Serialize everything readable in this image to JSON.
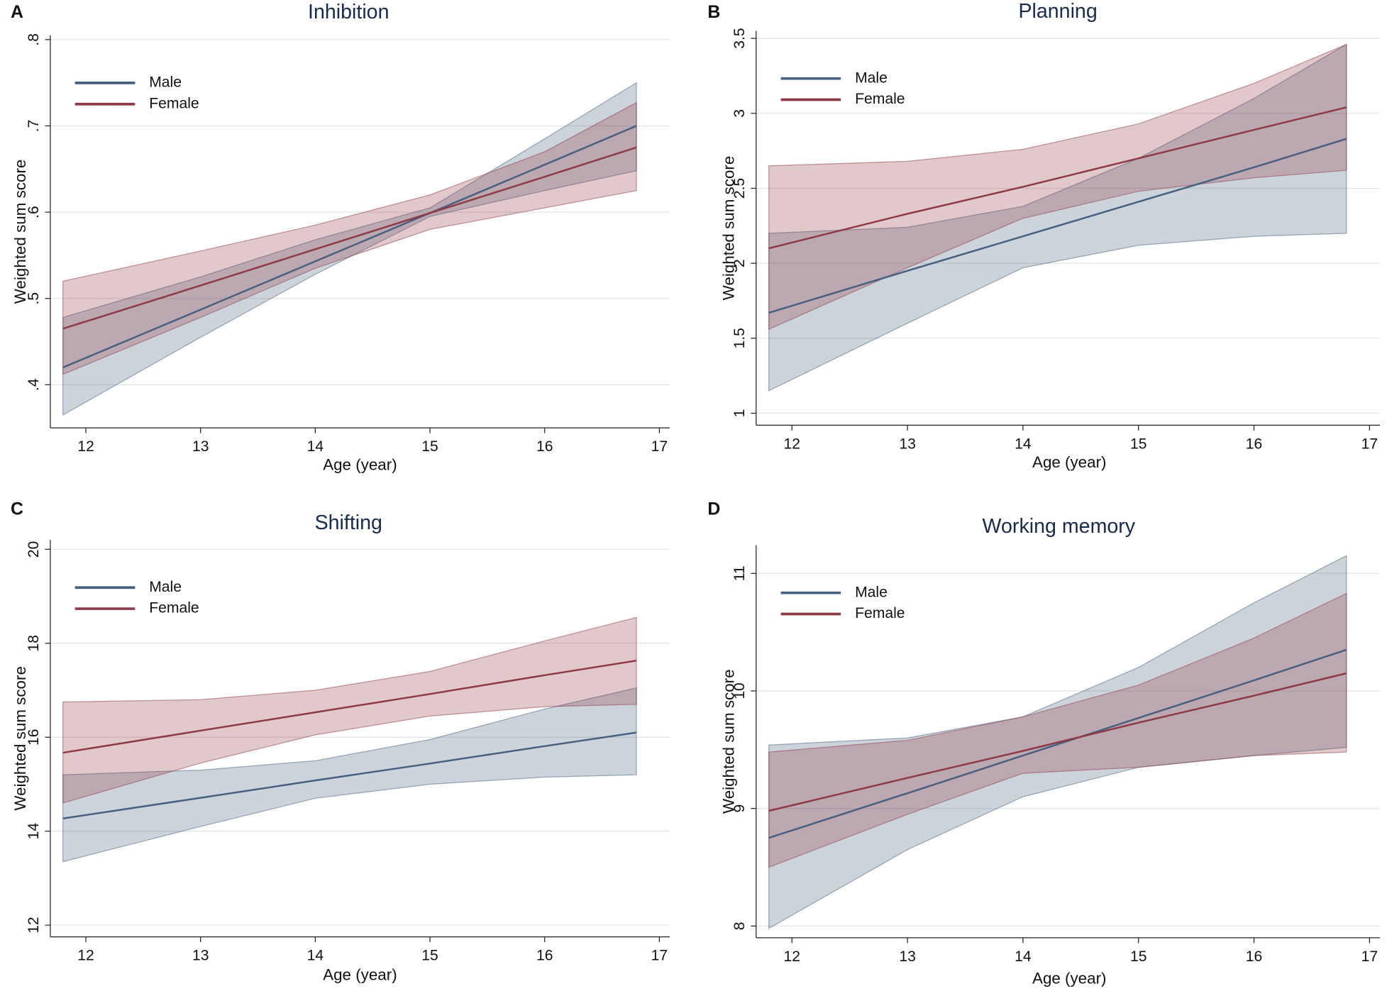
{
  "chart_data": [
    {
      "type": "line",
      "panel": "A",
      "title": "Inhibition",
      "xlabel": "Age (year)",
      "ylabel": "Weighted sum score",
      "x": [
        11.8,
        13,
        14,
        15,
        16,
        16.8
      ],
      "series": [
        {
          "name": "Male",
          "color": "#48607f",
          "values": [
            0.42,
            0.487,
            0.543,
            0.599,
            0.655,
            0.7
          ],
          "lower": [
            0.365,
            0.455,
            0.528,
            0.595,
            0.625,
            0.648
          ],
          "upper": [
            0.478,
            0.525,
            0.568,
            0.605,
            0.685,
            0.75
          ]
        },
        {
          "name": "Female",
          "color": "#8e3a46",
          "values": [
            0.465,
            0.515,
            0.557,
            0.599,
            0.641,
            0.675
          ],
          "lower": [
            0.412,
            0.478,
            0.535,
            0.58,
            0.605,
            0.625
          ],
          "upper": [
            0.52,
            0.555,
            0.585,
            0.62,
            0.67,
            0.727
          ]
        }
      ],
      "xlim": [
        11.69,
        17.09
      ],
      "xticks": [
        12,
        13,
        14,
        15,
        16,
        17
      ],
      "ylim": [
        0.35,
        0.805
      ],
      "yticks": [
        {
          "value": 0.4,
          "label": ".4"
        },
        {
          "value": 0.5,
          "label": ".5"
        },
        {
          "value": 0.6,
          "label": ".6"
        },
        {
          "value": 0.7,
          "label": ".7"
        },
        {
          "value": 0.8,
          "label": ".8"
        }
      ],
      "grid": true,
      "legend": "upper-left"
    },
    {
      "type": "line",
      "panel": "B",
      "title": "Planning",
      "xlabel": "Age (year)",
      "ylabel": "Weighted sum score",
      "x": [
        11.8,
        13,
        14,
        15,
        16,
        16.8
      ],
      "series": [
        {
          "name": "Male",
          "color": "#48607f",
          "values": [
            1.67,
            1.95,
            2.18,
            2.41,
            2.64,
            2.83
          ],
          "lower": [
            1.15,
            1.6,
            1.97,
            2.12,
            2.18,
            2.2
          ],
          "upper": [
            2.2,
            2.24,
            2.38,
            2.7,
            3.1,
            3.46
          ]
        },
        {
          "name": "Female",
          "color": "#8e3a46",
          "values": [
            2.1,
            2.33,
            2.51,
            2.7,
            2.89,
            3.04
          ],
          "lower": [
            1.56,
            1.97,
            2.3,
            2.48,
            2.57,
            2.62
          ],
          "upper": [
            2.65,
            2.68,
            2.76,
            2.93,
            3.2,
            3.46
          ]
        }
      ],
      "xlim": [
        11.69,
        17.09
      ],
      "xticks": [
        12,
        13,
        14,
        15,
        16,
        17
      ],
      "ylim": [
        0.92,
        3.55
      ],
      "yticks": [
        1,
        1.5,
        2,
        2.5,
        3,
        3.5
      ],
      "grid": true,
      "legend": "upper-left"
    },
    {
      "type": "line",
      "panel": "C",
      "title": "Shifting",
      "xlabel": "Age (year)",
      "ylabel": "Weighted sum score",
      "x": [
        11.8,
        13,
        14,
        15,
        16,
        16.8
      ],
      "series": [
        {
          "name": "Male",
          "color": "#48607f",
          "values": [
            14.27,
            14.71,
            15.08,
            15.44,
            15.81,
            16.1
          ],
          "lower": [
            13.35,
            14.1,
            14.7,
            15.0,
            15.15,
            15.2
          ],
          "upper": [
            15.2,
            15.3,
            15.5,
            15.95,
            16.6,
            17.05
          ]
        },
        {
          "name": "Female",
          "color": "#8e3a46",
          "values": [
            15.67,
            16.14,
            16.53,
            16.92,
            17.32,
            17.63
          ],
          "lower": [
            14.6,
            15.45,
            16.05,
            16.45,
            16.65,
            16.7
          ],
          "upper": [
            16.75,
            16.8,
            17.0,
            17.4,
            18.05,
            18.55
          ]
        }
      ],
      "xlim": [
        11.69,
        17.09
      ],
      "xticks": [
        12,
        13,
        14,
        15,
        16,
        17
      ],
      "ylim": [
        11.75,
        20.2
      ],
      "yticks": [
        12,
        14,
        16,
        18,
        20
      ],
      "grid": true,
      "legend": "upper-left"
    },
    {
      "type": "line",
      "panel": "D",
      "title": "Working memory",
      "xlabel": "Age (year)",
      "ylabel": "Weighted sum score",
      "x": [
        11.8,
        13,
        14,
        15,
        16,
        16.8
      ],
      "series": [
        {
          "name": "Male",
          "color": "#48607f",
          "values": [
            8.75,
            9.13,
            9.45,
            9.77,
            10.09,
            10.35
          ],
          "lower": [
            7.98,
            8.65,
            9.1,
            9.35,
            9.45,
            9.52
          ],
          "upper": [
            9.54,
            9.6,
            9.78,
            10.2,
            10.75,
            11.15
          ]
        },
        {
          "name": "Female",
          "color": "#8e3a46",
          "values": [
            8.98,
            9.26,
            9.49,
            9.73,
            9.96,
            10.15
          ],
          "lower": [
            8.5,
            8.95,
            9.3,
            9.35,
            9.45,
            9.48
          ],
          "upper": [
            9.48,
            9.58,
            9.78,
            10.05,
            10.45,
            10.83
          ]
        }
      ],
      "xlim": [
        11.69,
        17.09
      ],
      "xticks": [
        12,
        13,
        14,
        15,
        16,
        17
      ],
      "ylim": [
        7.9,
        11.24
      ],
      "yticks": [
        8,
        9,
        10,
        11
      ],
      "grid": true,
      "legend": "upper-left"
    }
  ]
}
